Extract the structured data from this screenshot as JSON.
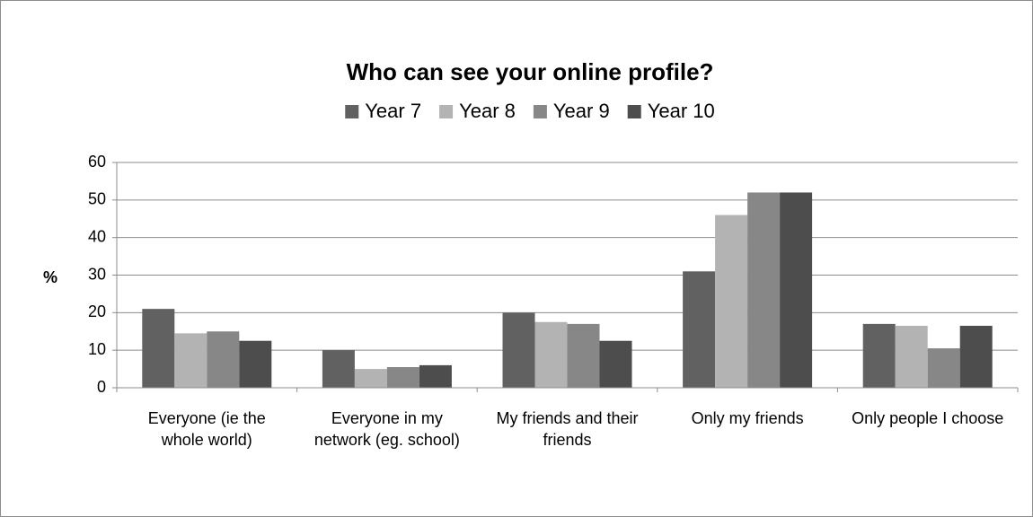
{
  "chart_data": {
    "type": "bar",
    "title": "Who can see your online profile?",
    "y_label": "%",
    "categories": [
      "Everyone (ie the whole world)",
      "Everyone in my network (eg. school)",
      "My friends and their friends",
      "Only my friends",
      "Only people I choose"
    ],
    "series": [
      {
        "name": "Year 7",
        "color": "#616161",
        "values": [
          21,
          10,
          20,
          31,
          17
        ]
      },
      {
        "name": "Year 8",
        "color": "#b3b3b3",
        "values": [
          14.5,
          5,
          17.5,
          46,
          16.5
        ]
      },
      {
        "name": "Year 9",
        "color": "#878787",
        "values": [
          15,
          5.5,
          17,
          52,
          10.5
        ]
      },
      {
        "name": "Year 10",
        "color": "#4d4d4d",
        "values": [
          12.5,
          6,
          12.5,
          52,
          16.5
        ]
      }
    ],
    "ylim": [
      0,
      60
    ],
    "yticks": [
      0,
      10,
      20,
      30,
      40,
      50,
      60
    ],
    "grid": true,
    "legend": "top"
  }
}
